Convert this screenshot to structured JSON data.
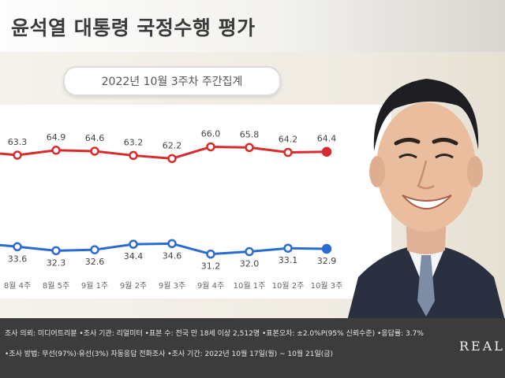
{
  "header": {
    "title": "윤석열 대통령 국정수행 평가"
  },
  "subtitle": "2022년 10월 3주차 주간집계",
  "chart_data": {
    "type": "line",
    "categories": [
      "8월 4주",
      "8월 5주",
      "9월 1주",
      "9월 2주",
      "9월 3주",
      "9월 4주",
      "10월 1주",
      "10월 2주",
      "10월 3주"
    ],
    "series": [
      {
        "values": [
          63.3,
          64.9,
          64.6,
          63.2,
          62.2,
          66.0,
          65.8,
          64.2,
          64.4
        ],
        "color": "#d92b2b"
      },
      {
        "values": [
          33.6,
          32.3,
          32.6,
          34.4,
          34.6,
          31.2,
          32.0,
          33.1,
          32.9
        ],
        "color": "#2a6bd1"
      }
    ],
    "grid": false
  },
  "footer": {
    "line1": "조사 의뢰: 미디어트리뷴 •조사 기관: 리얼미터 •표본 수: 전국 만 18세 이상 2,512명 •표본오차: ±2.0%P(95% 신뢰수준) •응답률: 3.7%",
    "line2": "•조사 방법: 무선(97%)·유선(3%) 자동응답 전화조사 •조사 기간: 2022년 10월 17일(월) ~ 10월 21일(금)",
    "brand": "REALM"
  },
  "colors": {
    "negative": "#d92b2b",
    "positive": "#2a6bd1",
    "footer_bg": "#3c3c3c"
  },
  "photo_icon": "person-photo"
}
